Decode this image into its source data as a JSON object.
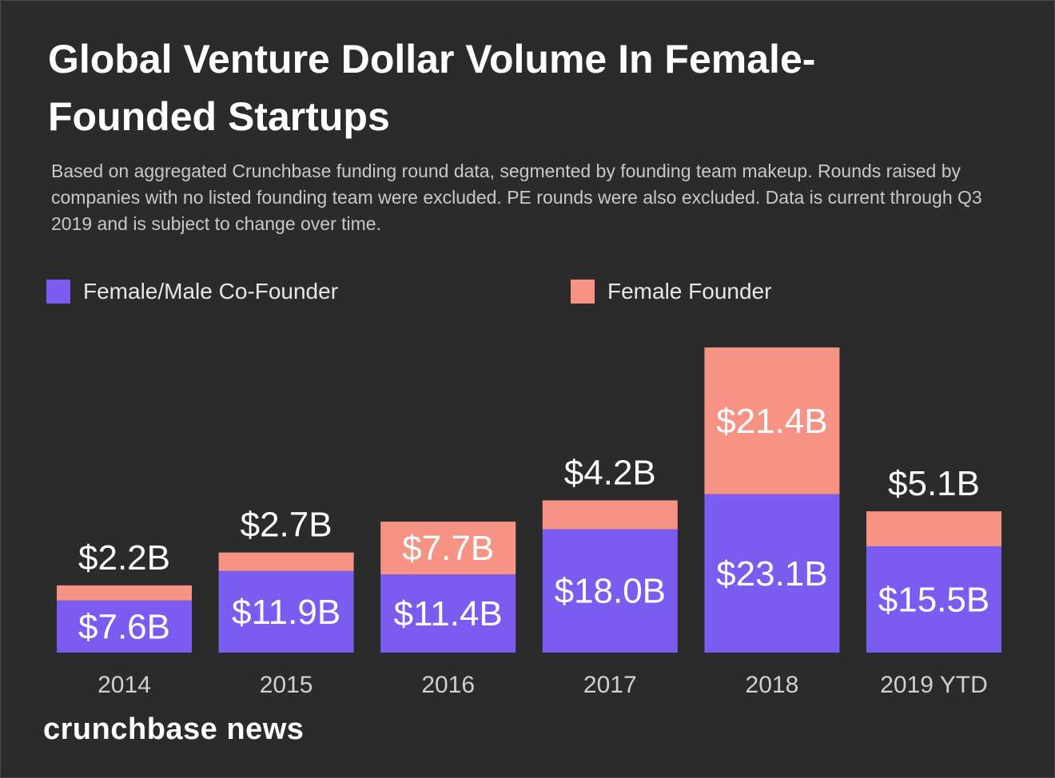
{
  "header": {
    "title": "Global Venture Dollar Volume In Female-Founded Startups",
    "subtitle": "Based on aggregated Crunchbase funding round data, segmented by founding team makeup. Rounds raised by companies with no listed founding team were excluded. PE rounds were also excluded. Data is current through Q3 2019 and is subject to change over time."
  },
  "colors": {
    "background": "#2b2b2b",
    "cofounder": "#7b5cf0",
    "female": "#f79384",
    "text": "#ffffff",
    "axis_text": "#d0d0d0"
  },
  "chart_data": {
    "type": "bar",
    "stacked": true,
    "categories": [
      "2014",
      "2015",
      "2016",
      "2017",
      "2018",
      "2019 YTD"
    ],
    "series": [
      {
        "name": "Female/Male Co-Founder",
        "values": [
          7.6,
          11.9,
          11.4,
          18.0,
          23.1,
          15.5
        ],
        "labels": [
          "$7.6B",
          "$11.9B",
          "$11.4B",
          "$18.0B",
          "$23.1B",
          "$15.5B"
        ]
      },
      {
        "name": "Female Founder",
        "values": [
          2.2,
          2.7,
          7.7,
          4.2,
          21.4,
          5.1
        ],
        "labels": [
          "$2.2B",
          "$2.7B",
          "$7.7B",
          "$4.2B",
          "$21.4B",
          "$5.1B"
        ]
      }
    ],
    "legend": [
      "Female/Male Co-Founder",
      "Female Founder"
    ],
    "legend_position": "top",
    "ylim": [
      0,
      44.5
    ],
    "grid": false
  },
  "footer": {
    "brand": "crunchbase news"
  }
}
